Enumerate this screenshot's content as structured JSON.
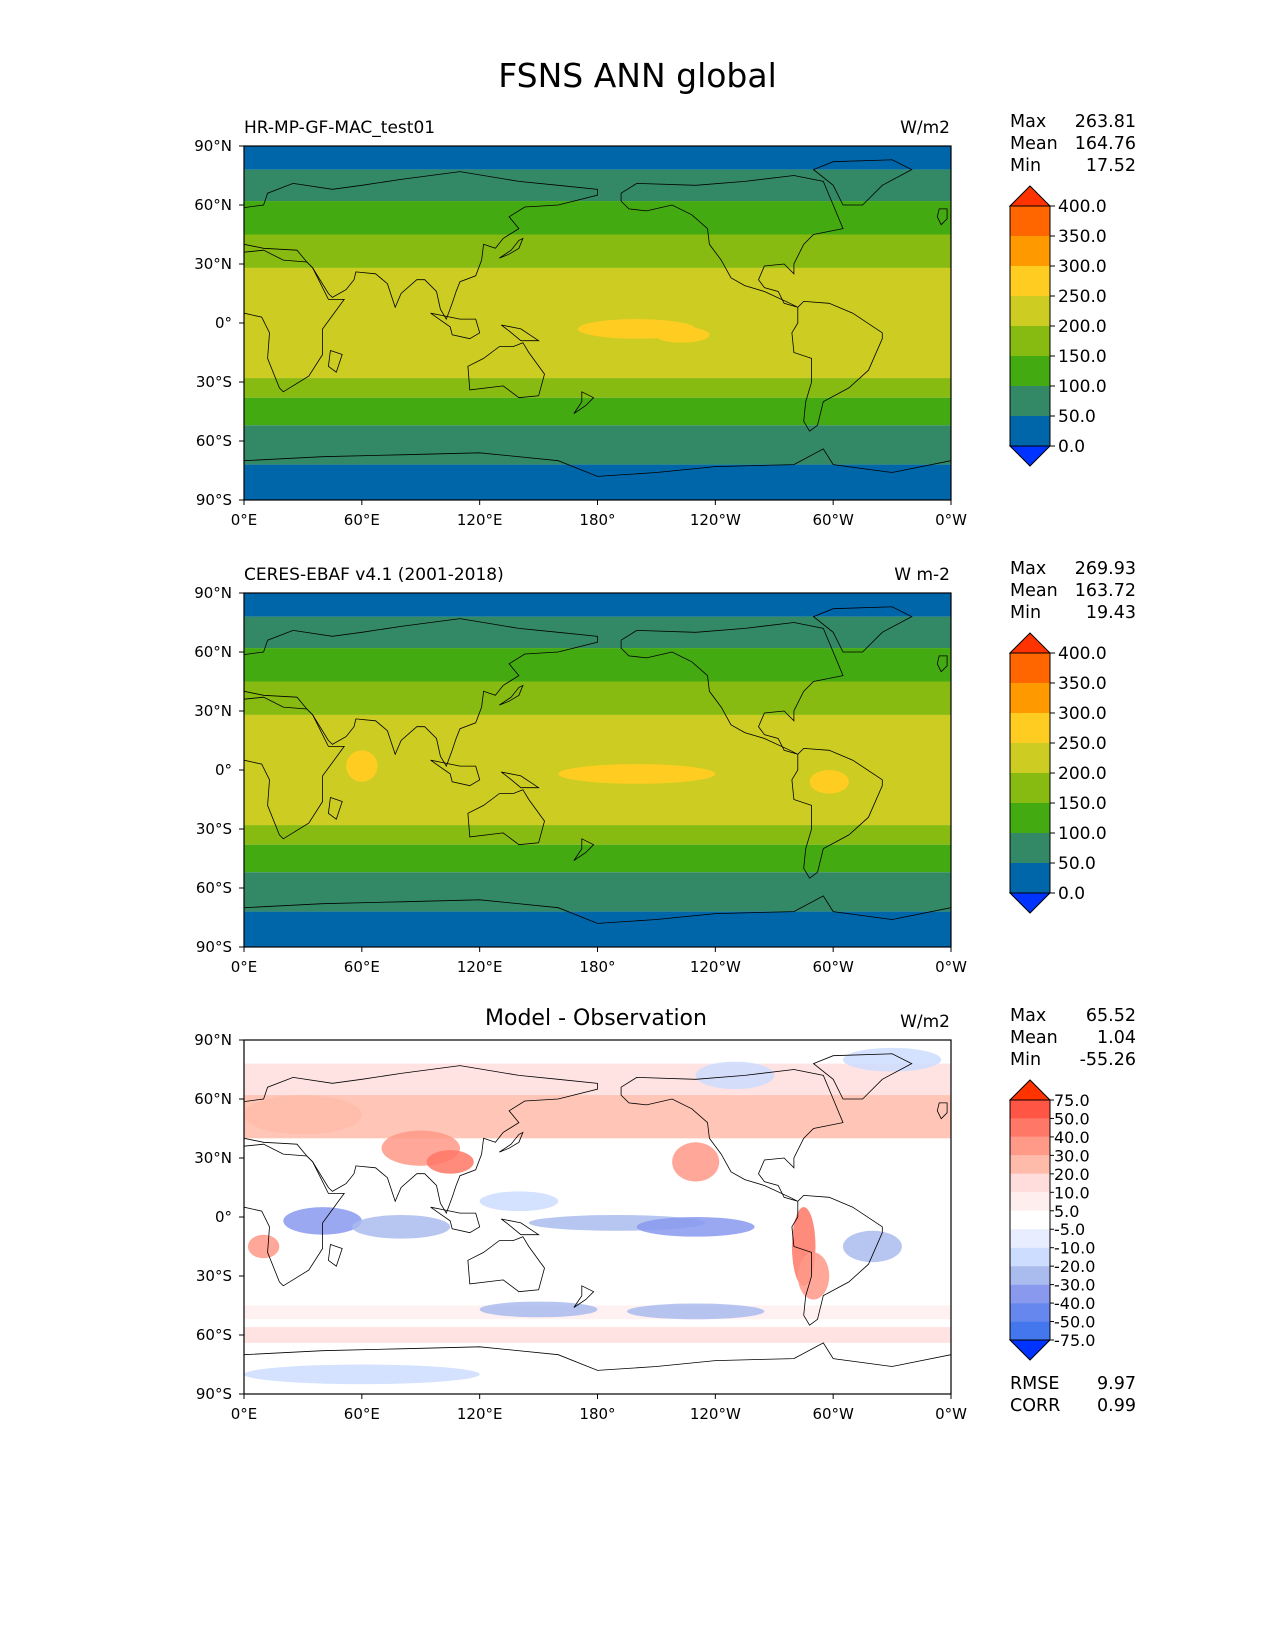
{
  "title": "FSNS ANN global",
  "x_ticks": [
    "0°E",
    "60°E",
    "120°E",
    "180°",
    "120°W",
    "60°W",
    "0°W"
  ],
  "y_ticks": [
    "90°N",
    "60°N",
    "30°N",
    "0°",
    "30°S",
    "60°S",
    "90°S"
  ],
  "colors": {
    "abs_levels": [
      "#0033ff",
      "#0066aa",
      "#338866",
      "#44aa11",
      "#88bb11",
      "#cccc22",
      "#ffcc22",
      "#ff9900",
      "#ff6600",
      "#ff3300"
    ],
    "diff_levels": [
      "#0033ff",
      "#2255ff",
      "#4477ee",
      "#6688ee",
      "#8899ee",
      "#aabbee",
      "#ccddff",
      "#e8eeff",
      "#ffffff",
      "#ffeeee",
      "#ffdddd",
      "#ffbbaa",
      "#ff9988",
      "#ff7766",
      "#ff5544",
      "#ff3300"
    ],
    "coastline": "#000000"
  },
  "panels": [
    {
      "title": "HR-MP-GF-MAC_test01",
      "units": "W/m2",
      "stats": {
        "max_label": "Max",
        "max": "263.81",
        "mean_label": "Mean",
        "mean": "164.76",
        "min_label": "Min",
        "min": "17.52"
      },
      "colorbar_ticks": [
        "400.0",
        "350.0",
        "300.0",
        "250.0",
        "200.0",
        "150.0",
        "100.0",
        "50.0",
        "0.0"
      ]
    },
    {
      "title": "CERES-EBAF v4.1 (2001-2018)",
      "units": "W m-2",
      "stats": {
        "max_label": "Max",
        "max": "269.93",
        "mean_label": "Mean",
        "mean": "163.72",
        "min_label": "Min",
        "min": "19.43"
      },
      "colorbar_ticks": [
        "400.0",
        "350.0",
        "300.0",
        "250.0",
        "200.0",
        "150.0",
        "100.0",
        "50.0",
        "0.0"
      ]
    },
    {
      "title": "Model - Observation",
      "units": "W/m2",
      "stats": {
        "max_label": "Max",
        "max": "65.52",
        "mean_label": "Mean",
        "mean": "1.04",
        "min_label": "Min",
        "min": "-55.26"
      },
      "colorbar_ticks": [
        "75.0",
        "50.0",
        "40.0",
        "30.0",
        "20.0",
        "10.0",
        "5.0",
        "-5.0",
        "-10.0",
        "-20.0",
        "-30.0",
        "-40.0",
        "-50.0",
        "-75.0"
      ],
      "metrics": {
        "rmse_label": "RMSE",
        "rmse": "9.97",
        "corr_label": "CORR",
        "corr": "0.99"
      }
    }
  ],
  "chart_data": {
    "type": "heatmap",
    "title": "FSNS ANN global",
    "xlim": [
      0,
      360
    ],
    "ylim": [
      -90,
      90
    ],
    "abs_levels": [
      0,
      50,
      100,
      150,
      200,
      250,
      300,
      350,
      400
    ],
    "diff_levels": [
      -75,
      -50,
      -40,
      -30,
      -20,
      -10,
      -5,
      5,
      10,
      20,
      30,
      40,
      50,
      75
    ],
    "zonal_bands_test": [
      {
        "lat": [
          -90,
          -72
        ],
        "range": "0-50"
      },
      {
        "lat": [
          -72,
          -52
        ],
        "range": "50-100"
      },
      {
        "lat": [
          -52,
          -38
        ],
        "range": "100-150"
      },
      {
        "lat": [
          -38,
          -28
        ],
        "range": "150-200"
      },
      {
        "lat": [
          -28,
          28
        ],
        "range": "200-250"
      },
      {
        "lat": [
          28,
          45
        ],
        "range": "150-200"
      },
      {
        "lat": [
          45,
          62
        ],
        "range": "100-150"
      },
      {
        "lat": [
          62,
          78
        ],
        "range": "50-100"
      },
      {
        "lat": [
          78,
          90
        ],
        "range": "0-50"
      }
    ]
  }
}
